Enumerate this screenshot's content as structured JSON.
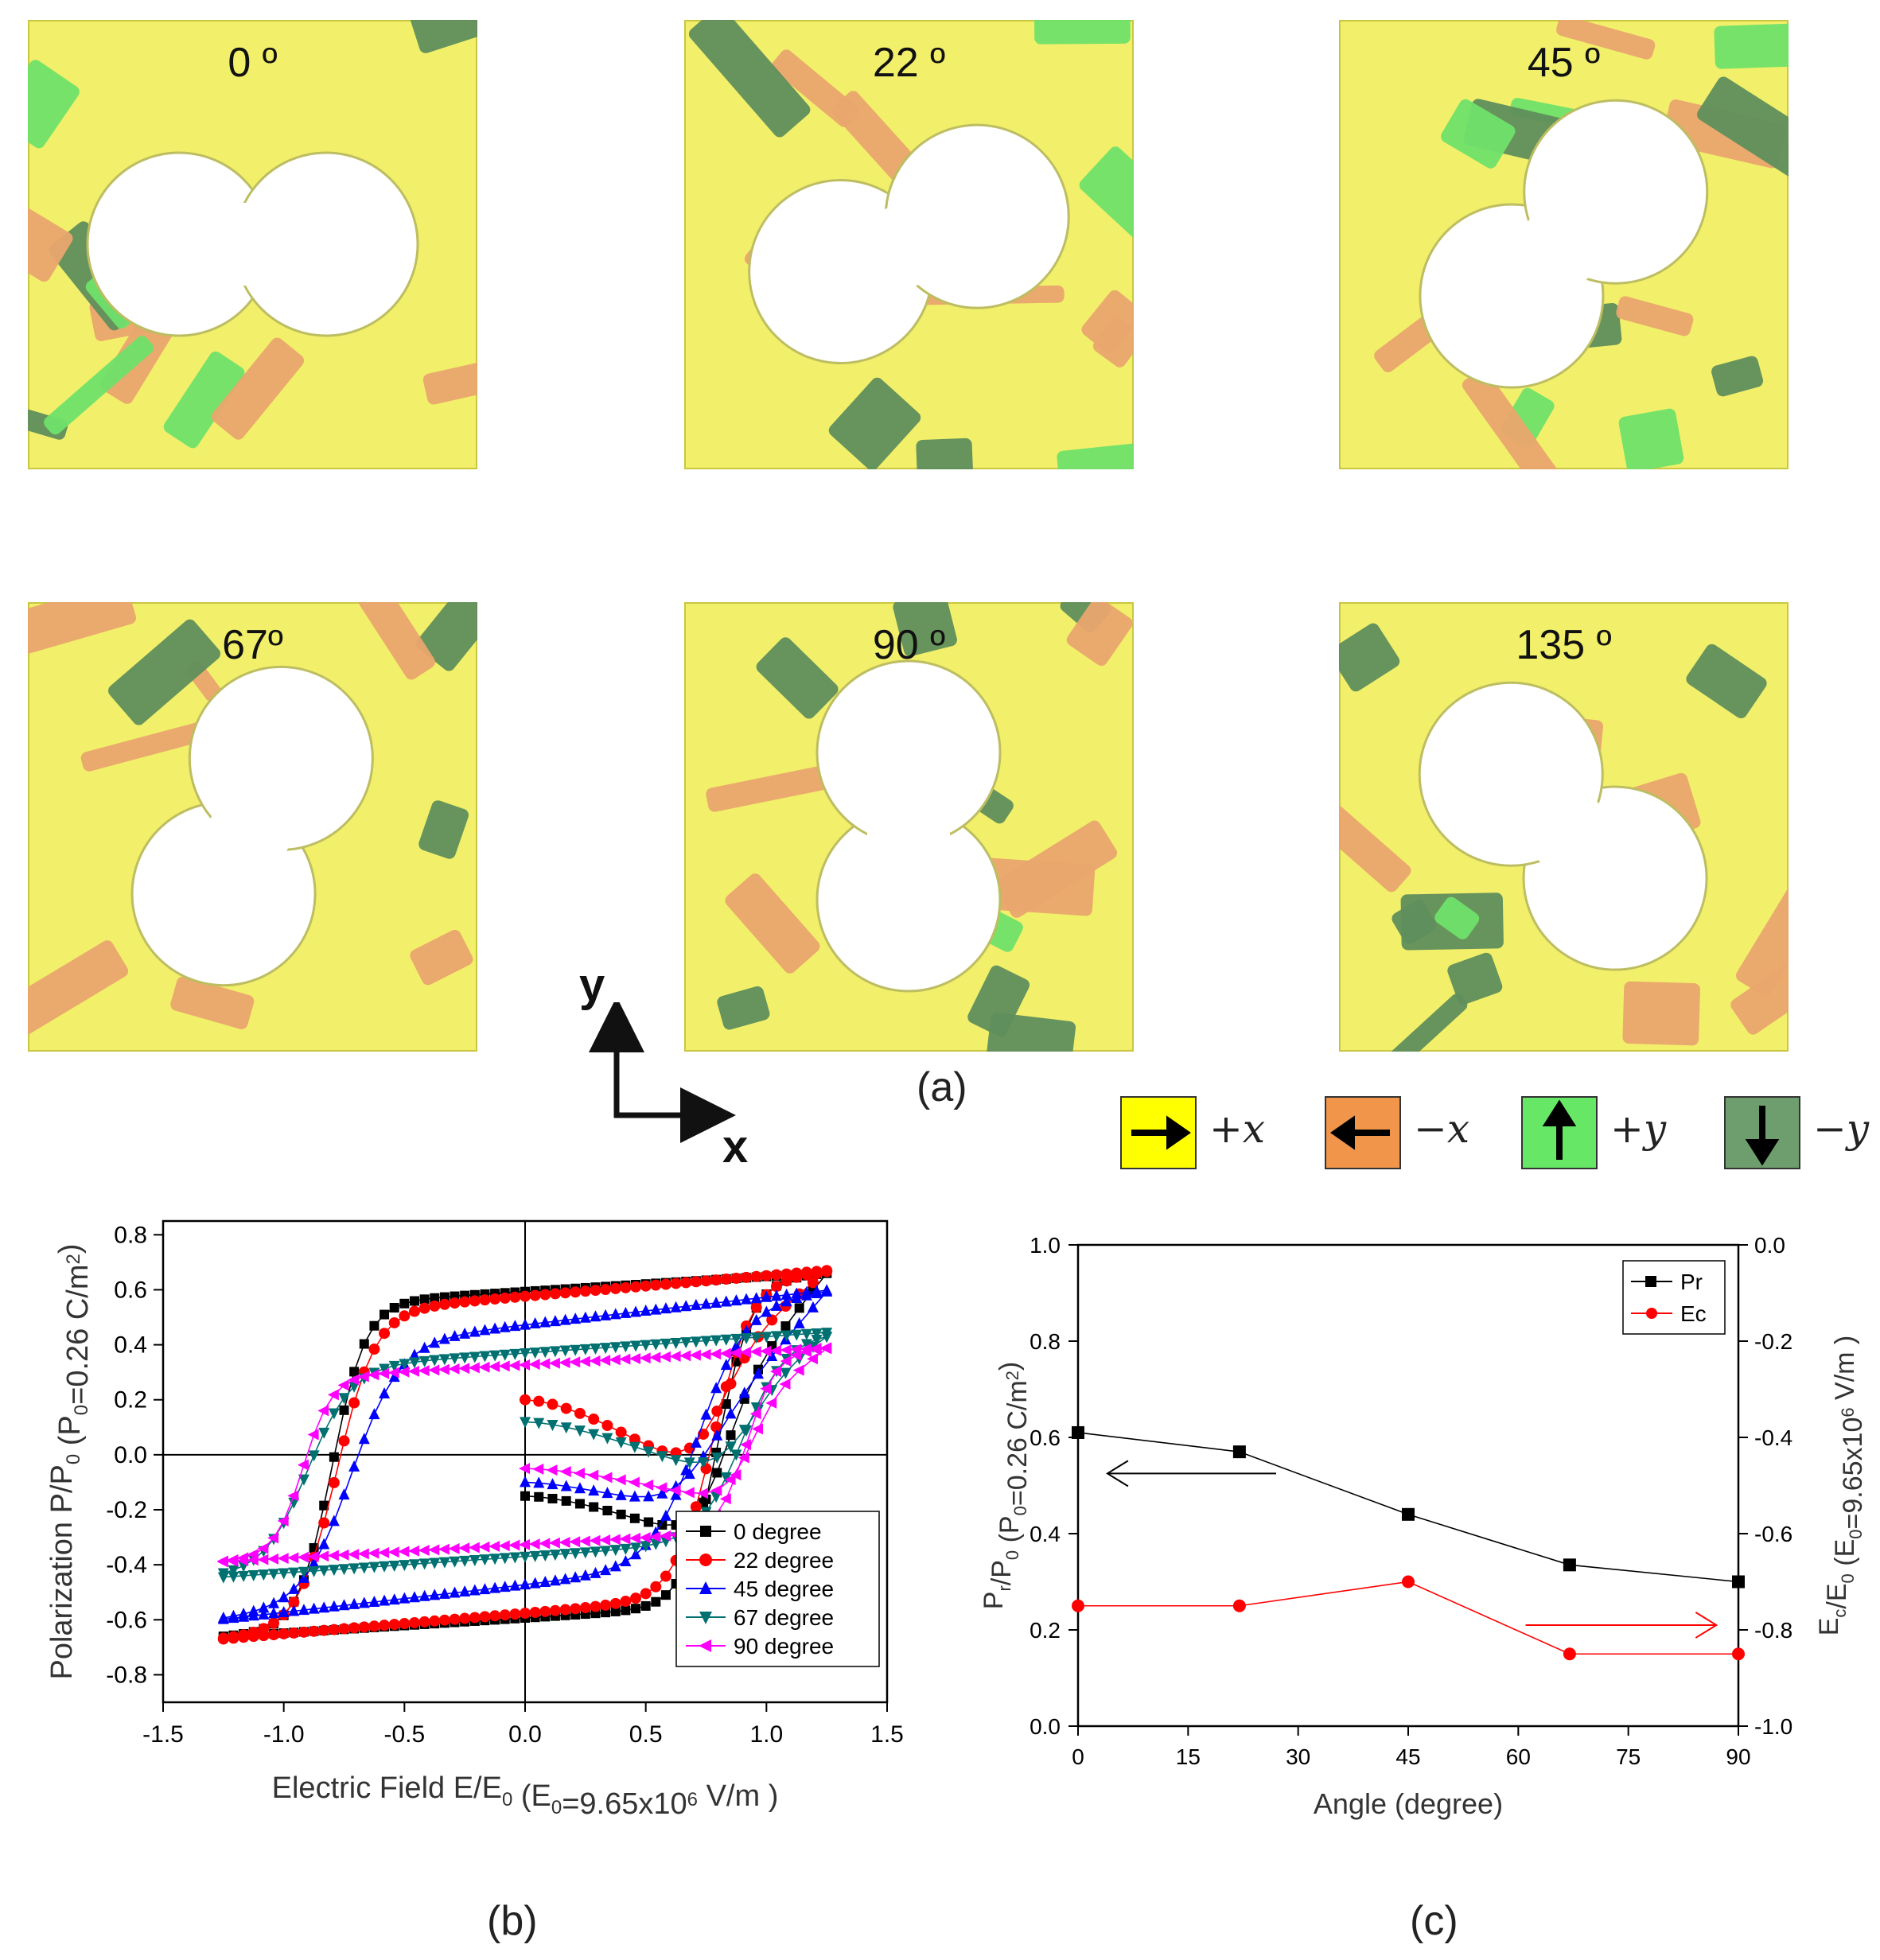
{
  "panel_a": {
    "caption": "(a)",
    "maps": [
      {
        "label": "0 º",
        "rotation_deg": 0
      },
      {
        "label": "22 º",
        "rotation_deg": 22
      },
      {
        "label": "45 º",
        "rotation_deg": 45
      },
      {
        "label": "67º",
        "rotation_deg": 67
      },
      {
        "label": "90 º",
        "rotation_deg": 90
      },
      {
        "label": "135 º",
        "rotation_deg": 135
      }
    ],
    "axes": {
      "y": "y",
      "x": "x"
    },
    "legend": [
      {
        "label": "+x",
        "color": "#FFFF00",
        "arrow": "right"
      },
      {
        "label": "−x",
        "color": "#F0954A",
        "arrow": "left"
      },
      {
        "label": "+y",
        "color": "#66E866",
        "arrow": "up"
      },
      {
        "label": "−y",
        "color": "#6E9E6E",
        "arrow": "down"
      }
    ],
    "domain_colors": {
      "plus_x": "#F2F06A",
      "minus_x": "#E9A56E",
      "plus_y": "#6FE06A",
      "minus_y": "#5F8E5C"
    }
  },
  "chart_data": [
    {
      "id": "b",
      "type": "line",
      "caption": "(b)",
      "title": "",
      "xlabel": "Electric Field E/E",
      "xlabel_sub": "0",
      "xlabel_tail": " (E",
      "xlabel_sub2": "0",
      "xlabel_tail2": "=9.65x10",
      "xlabel_sup": "6",
      "xlabel_tail3": " V/m )",
      "ylabel": "Polarization P/P",
      "ylabel_sub": "0",
      "ylabel_tail": " (P",
      "ylabel_sub2": "0",
      "ylabel_tail2": "=0.26 C/m",
      "ylabel_sup": "2",
      "ylabel_tail3": ")",
      "xlim": [
        -1.5,
        1.5
      ],
      "ylim": [
        -0.9,
        0.85
      ],
      "xticks": [
        "-1.5",
        "-1.0",
        "-0.5",
        "0.0",
        "0.5",
        "1.0",
        "1.5"
      ],
      "xtick_values": [
        -1.5,
        -1.0,
        -0.5,
        0.0,
        0.5,
        1.0,
        1.5
      ],
      "yticks": [
        "-0.8",
        "-0.6",
        "-0.4",
        "-0.2",
        "0.0",
        "0.2",
        "0.4",
        "0.6",
        "0.8"
      ],
      "ytick_values": [
        -0.8,
        -0.6,
        -0.4,
        -0.2,
        0.0,
        0.2,
        0.4,
        0.6,
        0.8
      ],
      "legend_position": "bottom-right",
      "series": [
        {
          "name": "0  degree",
          "color": "#000000",
          "marker": "square",
          "Ps": 0.69,
          "Pr": 0.61,
          "Ec": 0.8,
          "w": 0.14,
          "slope": 0.055,
          "init": -0.15
        },
        {
          "name": "22 degree",
          "color": "#FF0000",
          "marker": "circle",
          "Ps": 0.67,
          "Pr": 0.57,
          "Ec": 0.78,
          "w": 0.16,
          "slope": 0.075,
          "init": 0.2
        },
        {
          "name": "45 degree",
          "color": "#0000FF",
          "marker": "triangle-up",
          "Ps": 0.55,
          "Pr": 0.44,
          "Ec": 0.72,
          "w": 0.2,
          "slope": 0.1,
          "init": -0.1
        },
        {
          "name": "67 degree",
          "color": "#007070",
          "marker": "triangle-down",
          "Ps": 0.43,
          "Pr": 0.33,
          "Ec": 0.9,
          "w": 0.18,
          "slope": 0.06,
          "init": 0.12
        },
        {
          "name": "90 degree",
          "color": "#FF00FF",
          "marker": "triangle-left",
          "Ps": 0.38,
          "Pr": 0.3,
          "Ec": 0.92,
          "w": 0.12,
          "slope": 0.05,
          "init": -0.05
        }
      ]
    },
    {
      "id": "c",
      "type": "line",
      "caption": "(c)",
      "title": "",
      "xlabel": "Angle (degree)",
      "ylabel_left": "P",
      "ylabel_left_sub": "r",
      "ylabel_left_tail": "/P",
      "ylabel_left_sub2": "0",
      "ylabel_left_tail2": " (P",
      "ylabel_left_sub3": "0",
      "ylabel_left_tail3": "=0.26 C/m",
      "ylabel_left_sup": "2",
      "ylabel_left_tail4": ")",
      "ylabel_right": "E",
      "ylabel_right_sub": "c",
      "ylabel_right_tail": "/E",
      "ylabel_right_sub2": "0",
      "ylabel_right_tail2": " (E",
      "ylabel_right_sub3": "0",
      "ylabel_right_tail3": "=9.65x10",
      "ylabel_right_sup": "6",
      "ylabel_right_tail4": " V/m )",
      "xlim": [
        0,
        90
      ],
      "ylim_left": [
        0.0,
        1.0
      ],
      "ylim_right": [
        -1.0,
        0.0
      ],
      "xticks": [
        "0",
        "15",
        "30",
        "45",
        "60",
        "75",
        "90"
      ],
      "xtick_values": [
        0,
        15,
        30,
        45,
        60,
        75,
        90
      ],
      "yticks_left": [
        "0.0",
        "0.2",
        "0.4",
        "0.6",
        "0.8",
        "1.0"
      ],
      "ytick_left_values": [
        0.0,
        0.2,
        0.4,
        0.6,
        0.8,
        1.0
      ],
      "yticks_right": [
        "-1.0",
        "-0.8",
        "-0.6",
        "-0.4",
        "-0.2",
        "0.0"
      ],
      "ytick_right_values": [
        -1.0,
        -0.8,
        -0.6,
        -0.4,
        -0.2,
        0.0
      ],
      "legend_position": "top-right",
      "x": [
        0,
        22,
        45,
        67,
        90
      ],
      "series": [
        {
          "name": "Pr",
          "color": "#000000",
          "marker": "square",
          "axis": "left",
          "values": [
            0.61,
            0.57,
            0.44,
            0.335,
            0.3
          ]
        },
        {
          "name": "Ec",
          "color": "#FF0000",
          "marker": "circle",
          "axis": "right",
          "values": [
            -0.75,
            -0.75,
            -0.7,
            -0.85,
            -0.85
          ]
        }
      ],
      "arrows": [
        {
          "axis": "left",
          "direction": "left",
          "x_from": 27,
          "x_to": 4,
          "y": 0.525,
          "color": "#000000"
        },
        {
          "axis": "right",
          "direction": "right",
          "x_from": 61,
          "x_to": 87,
          "y": -0.79,
          "color": "#FF0000"
        }
      ]
    }
  ]
}
